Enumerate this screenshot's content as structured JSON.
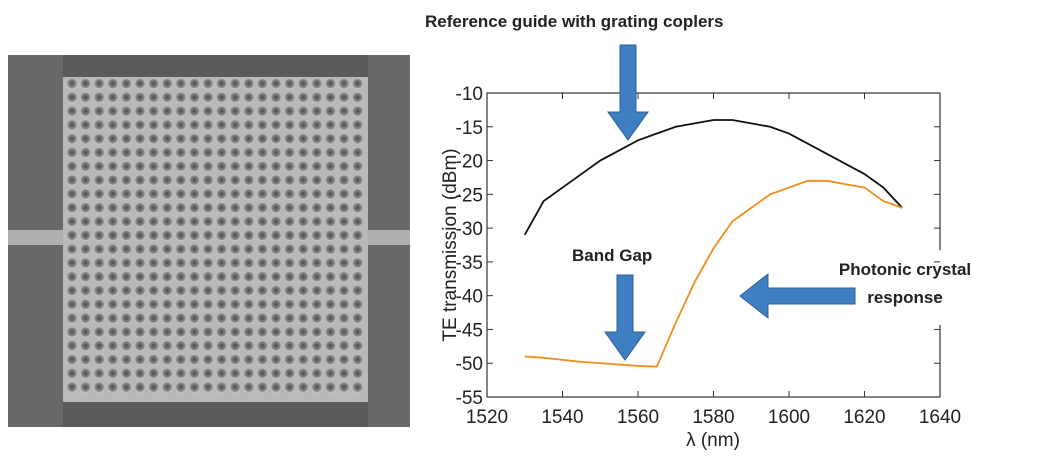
{
  "chart_data": {
    "type": "line",
    "xlabel": "λ (nm)",
    "ylabel": "TE transmission (dBm)",
    "annotations": [
      "Reference guide with grating coplers",
      "Band Gap",
      "Photonic crystal response"
    ],
    "x": [
      1530,
      1535,
      1540,
      1545,
      1550,
      1555,
      1560,
      1565,
      1570,
      1575,
      1580,
      1585,
      1590,
      1595,
      1600,
      1605,
      1610,
      1615,
      1620,
      1625,
      1630
    ],
    "series": [
      {
        "color": "#111111",
        "values": [
          -31,
          -26,
          -24,
          -22,
          -20,
          -18.5,
          -17,
          -16,
          -15,
          -14.5,
          -14,
          -14,
          -14.5,
          -15,
          -16,
          -17.5,
          -19,
          -20.5,
          -22,
          -24,
          -27
        ]
      },
      {
        "color": "#f28c1a",
        "values": [
          -49,
          -49.2,
          -49.5,
          -49.8,
          -50,
          -50.2,
          -50.4,
          -50.5,
          -44,
          -38,
          -33,
          -29,
          -27,
          -25,
          -24,
          -23,
          -23,
          -23.5,
          -24,
          -26,
          -27
        ]
      }
    ],
    "xlim": [
      1520,
      1640
    ],
    "xticks": [
      1520,
      1540,
      1560,
      1580,
      1600,
      1620,
      1640
    ],
    "ylim": [
      -55,
      -10
    ],
    "yticks": [
      -55,
      -50,
      -45,
      -40,
      -35,
      -30,
      -25,
      -20,
      -15,
      -10
    ]
  }
}
